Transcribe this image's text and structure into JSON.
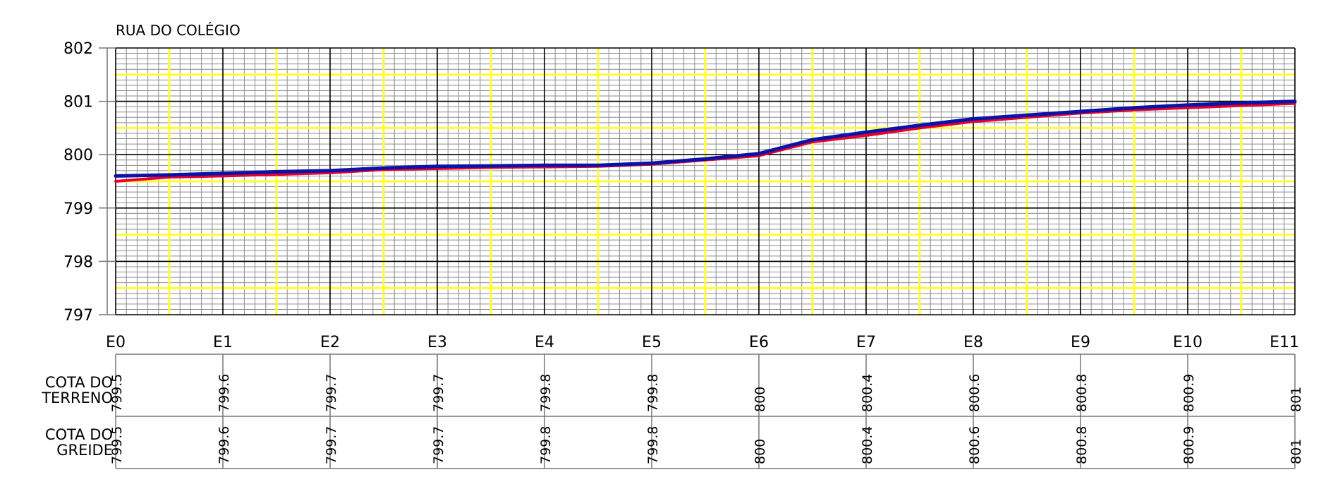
{
  "chart_data": {
    "type": "line",
    "title": "RUA DO COLÉGIO",
    "title_color": "#ff0000",
    "xlabel": "",
    "ylabel": "",
    "ylim": [
      797,
      802
    ],
    "y_ticks": [
      "802",
      "801",
      "800",
      "799",
      "798",
      "797"
    ],
    "categories": [
      "E0",
      "E1",
      "E2",
      "E3",
      "E4",
      "E5",
      "E6",
      "E7",
      "E8",
      "E9",
      "E10",
      "E11"
    ],
    "grid": true,
    "series": [
      {
        "color": "#e8002a",
        "x": [
          0,
          0.5,
          1,
          1.5,
          2,
          2.5,
          3,
          3.5,
          4,
          4.5,
          5,
          5.5,
          6,
          6.5,
          7,
          7.5,
          8,
          8.5,
          9,
          9.5,
          10,
          10.5,
          11
        ],
        "values": [
          799.5,
          799.58,
          799.6,
          799.63,
          799.66,
          799.72,
          799.74,
          799.76,
          799.77,
          799.78,
          799.82,
          799.9,
          799.98,
          800.24,
          800.36,
          800.5,
          800.62,
          800.7,
          800.78,
          800.84,
          800.88,
          800.92,
          800.96
        ]
      },
      {
        "color": "#0a12a8",
        "x": [
          0,
          0.5,
          1,
          1.5,
          2,
          2.5,
          3,
          3.5,
          4,
          4.5,
          5,
          5.5,
          6,
          6.5,
          7,
          7.5,
          8,
          8.5,
          9,
          9.5,
          10,
          10.5,
          11
        ],
        "values": [
          799.6,
          799.62,
          799.65,
          799.68,
          799.7,
          799.75,
          799.78,
          799.79,
          799.8,
          799.8,
          799.84,
          799.92,
          800.02,
          800.28,
          800.42,
          800.55,
          800.67,
          800.74,
          800.81,
          800.88,
          800.93,
          800.97,
          801.0
        ]
      }
    ],
    "table": {
      "rows": [
        {
          "label_lines": [
            "COTA DO",
            "TERRENO"
          ],
          "values": [
            "799.5",
            "799.6",
            "799.7",
            "799.7",
            "799.8",
            "799.8",
            "800",
            "800.4",
            "800.6",
            "800.8",
            "800.9",
            "801"
          ]
        },
        {
          "label_lines": [
            "COTA DO",
            "GREIDE"
          ],
          "values": [
            "799.5",
            "799.6",
            "799.7",
            "799.7",
            "799.8",
            "799.8",
            "800",
            "800.4",
            "800.6",
            "800.8",
            "800.9",
            "801"
          ]
        }
      ]
    }
  }
}
